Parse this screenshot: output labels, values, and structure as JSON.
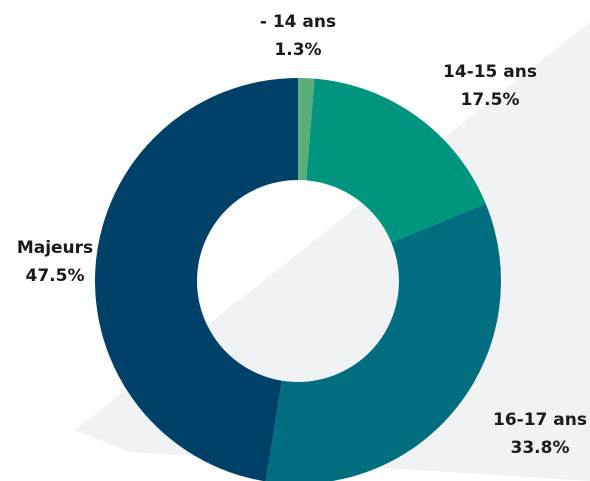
{
  "chart_data": {
    "type": "donut",
    "categories": [
      "- 14 ans",
      "14-15 ans",
      "16-17 ans",
      "Majeurs"
    ],
    "values": [
      1.3,
      17.5,
      33.8,
      47.5
    ],
    "value_labels": [
      "1.3%",
      "17.5%",
      "33.8%",
      "47.5%"
    ],
    "colors": [
      "#5aae7a",
      "#00957e",
      "#006e7f",
      "#00416a"
    ]
  }
}
